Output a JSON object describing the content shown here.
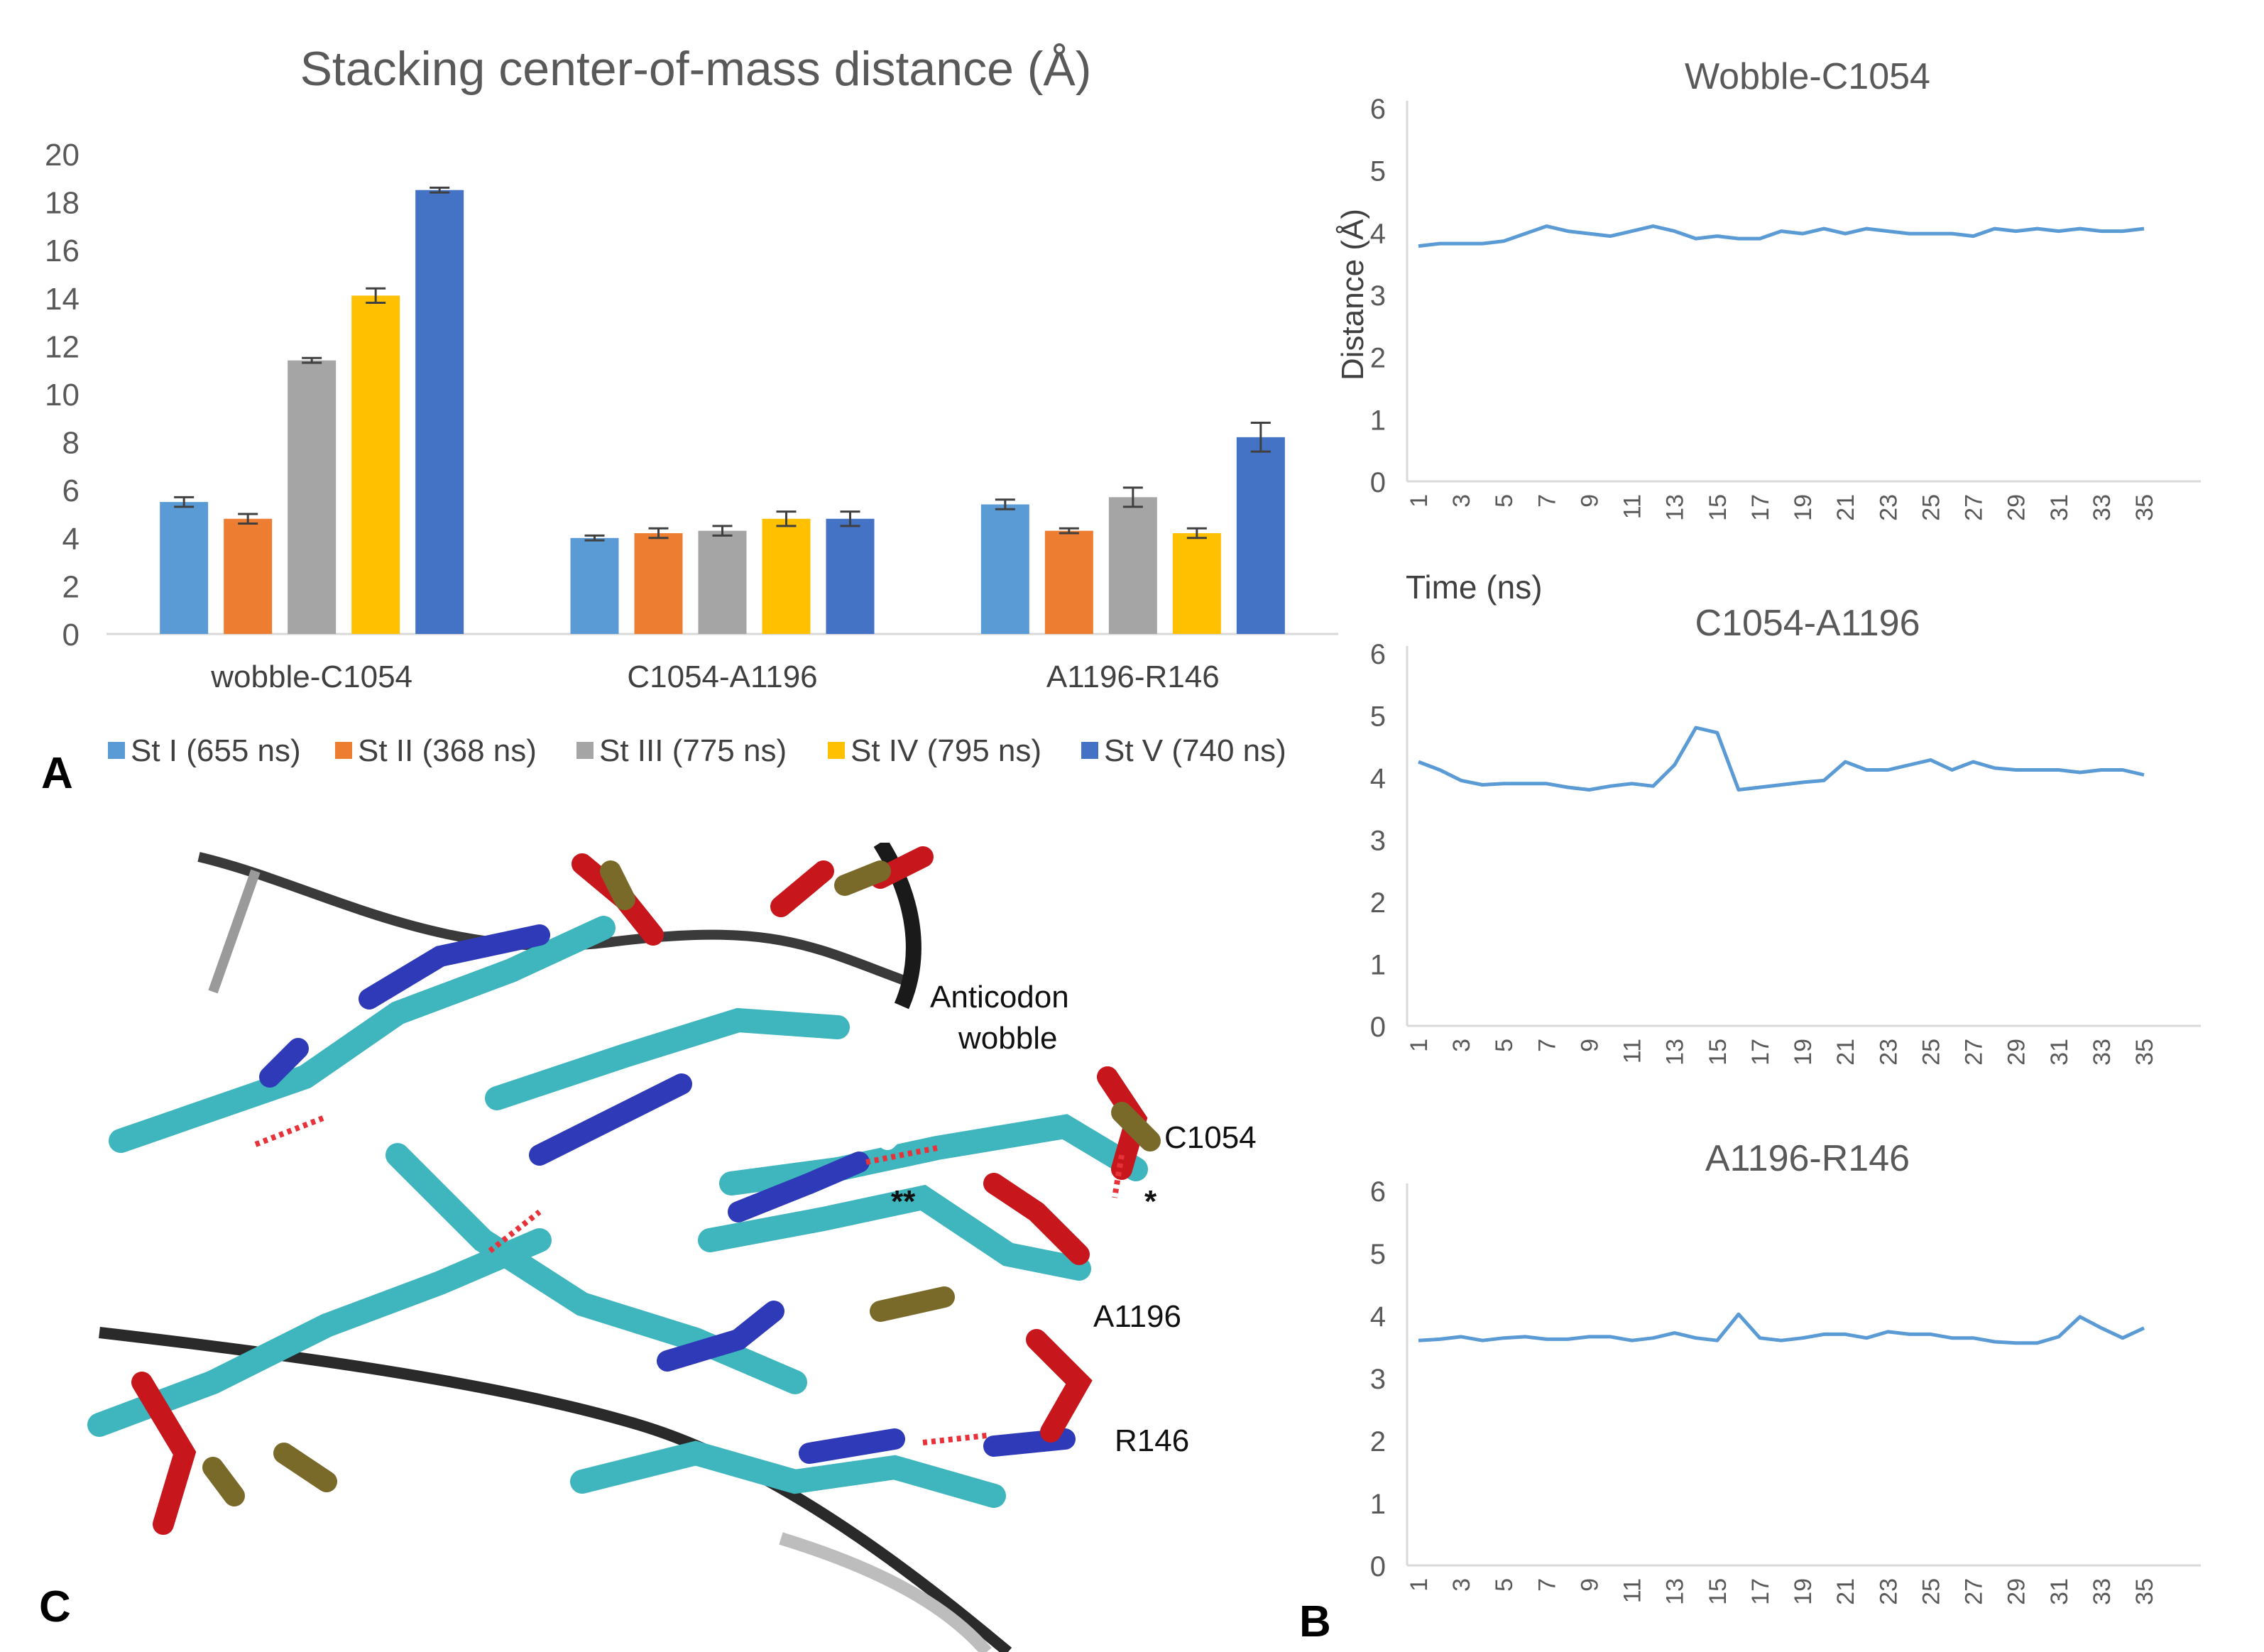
{
  "panel_labels": {
    "a": "A",
    "b": "B",
    "c": "C"
  },
  "colors": {
    "st1": "#5b9bd5",
    "st2": "#ed7d31",
    "st3": "#a5a5a5",
    "st4": "#ffc000",
    "st5": "#4472c4",
    "line": "#5b9bd5"
  },
  "chart_data": [
    {
      "id": "bar",
      "type": "bar",
      "title": "Stacking center-of-mass distance (Å)",
      "categories": [
        "wobble-C1054",
        "C1054-A1196",
        "A1196-R146"
      ],
      "ylim": [
        0,
        20
      ],
      "yticks": [
        0,
        2,
        4,
        6,
        8,
        10,
        12,
        14,
        16,
        18,
        20
      ],
      "series": [
        {
          "name": "St I (655 ns)",
          "color": "#5b9bd5",
          "values": [
            5.5,
            4.0,
            5.4
          ],
          "errors": [
            0.2,
            0.1,
            0.2
          ]
        },
        {
          "name": "St II (368 ns)",
          "color": "#ed7d31",
          "values": [
            4.8,
            4.2,
            4.3
          ],
          "errors": [
            0.2,
            0.2,
            0.1
          ]
        },
        {
          "name": "St III (775 ns)",
          "color": "#a5a5a5",
          "values": [
            11.4,
            4.3,
            5.7
          ],
          "errors": [
            0.1,
            0.2,
            0.4
          ]
        },
        {
          "name": "St IV (795 ns)",
          "color": "#ffc000",
          "values": [
            14.1,
            4.8,
            4.2
          ],
          "errors": [
            0.3,
            0.3,
            0.2
          ]
        },
        {
          "name": "St V (740 ns)",
          "color": "#4472c4",
          "values": [
            18.5,
            4.8,
            8.2
          ],
          "errors": [
            0.1,
            0.3,
            0.6
          ]
        }
      ]
    },
    {
      "id": "line1",
      "type": "line",
      "title": "Wobble-C1054",
      "ylabel": "Distance (Å)",
      "xlabel": "Time (ns)",
      "ylim": [
        0,
        6
      ],
      "yticks": [
        0,
        1,
        2,
        3,
        4,
        5,
        6
      ],
      "xticks": [
        "1",
        "3",
        "5",
        "7",
        "9",
        "11",
        "13",
        "15",
        "17",
        "19",
        "21",
        "23",
        "25",
        "27",
        "29",
        "31",
        "33",
        "35"
      ],
      "x": [
        1,
        2,
        3,
        4,
        5,
        6,
        7,
        8,
        9,
        10,
        11,
        12,
        13,
        14,
        15,
        16,
        17,
        18,
        19,
        20,
        21,
        22,
        23,
        24,
        25,
        26,
        27,
        28,
        29,
        30,
        31,
        32,
        33,
        34,
        35
      ],
      "values": [
        3.78,
        3.82,
        3.82,
        3.82,
        3.86,
        3.98,
        4.1,
        4.02,
        3.98,
        3.94,
        4.02,
        4.1,
        4.02,
        3.9,
        3.94,
        3.9,
        3.9,
        4.02,
        3.98,
        4.06,
        3.98,
        4.06,
        4.02,
        3.98,
        3.98,
        3.98,
        3.94,
        4.06,
        4.02,
        4.06,
        4.02,
        4.06,
        4.02,
        4.02,
        4.06
      ]
    },
    {
      "id": "line2",
      "type": "line",
      "title": "C1054-A1196",
      "ylim": [
        0,
        6
      ],
      "yticks": [
        0,
        1,
        2,
        3,
        4,
        5,
        6
      ],
      "xticks": [
        "1",
        "3",
        "5",
        "7",
        "9",
        "11",
        "13",
        "15",
        "17",
        "19",
        "21",
        "23",
        "25",
        "27",
        "29",
        "31",
        "33",
        "35"
      ],
      "x": [
        1,
        2,
        3,
        4,
        5,
        6,
        7,
        8,
        9,
        10,
        11,
        12,
        13,
        14,
        15,
        16,
        17,
        18,
        19,
        20,
        21,
        22,
        23,
        24,
        25,
        26,
        27,
        28,
        29,
        30,
        31,
        32,
        33,
        34,
        35
      ],
      "values": [
        4.25,
        4.12,
        3.95,
        3.88,
        3.9,
        3.9,
        3.9,
        3.84,
        3.8,
        3.86,
        3.9,
        3.86,
        4.2,
        4.8,
        4.72,
        3.8,
        3.84,
        3.88,
        3.92,
        3.95,
        4.25,
        4.12,
        4.12,
        4.2,
        4.28,
        4.12,
        4.25,
        4.15,
        4.12,
        4.12,
        4.12,
        4.08,
        4.12,
        4.12,
        4.04
      ]
    },
    {
      "id": "line3",
      "type": "line",
      "title": "A1196-R146",
      "ylim": [
        0,
        6
      ],
      "yticks": [
        0,
        1,
        2,
        3,
        4,
        5,
        6
      ],
      "xticks": [
        "1",
        "3",
        "5",
        "7",
        "9",
        "11",
        "13",
        "15",
        "17",
        "19",
        "21",
        "23",
        "25",
        "27",
        "29",
        "31",
        "33",
        "35"
      ],
      "x": [
        1,
        2,
        3,
        4,
        5,
        6,
        7,
        8,
        9,
        10,
        11,
        12,
        13,
        14,
        15,
        16,
        17,
        18,
        19,
        20,
        21,
        22,
        23,
        24,
        25,
        26,
        27,
        28,
        29,
        30,
        31,
        32,
        33,
        34,
        35
      ],
      "values": [
        3.6,
        3.62,
        3.66,
        3.6,
        3.64,
        3.66,
        3.62,
        3.62,
        3.66,
        3.66,
        3.6,
        3.64,
        3.72,
        3.64,
        3.6,
        4.02,
        3.64,
        3.6,
        3.64,
        3.7,
        3.7,
        3.64,
        3.74,
        3.7,
        3.7,
        3.64,
        3.64,
        3.58,
        3.56,
        3.56,
        3.66,
        3.98,
        3.8,
        3.64,
        3.8
      ]
    }
  ],
  "structure": {
    "labels": {
      "anticodon": "Anticodon",
      "wobble": "wobble",
      "c1054": "C1054",
      "a1196": "A1196",
      "r146": "R146",
      "double_star": "**",
      "single_star": "*"
    }
  }
}
